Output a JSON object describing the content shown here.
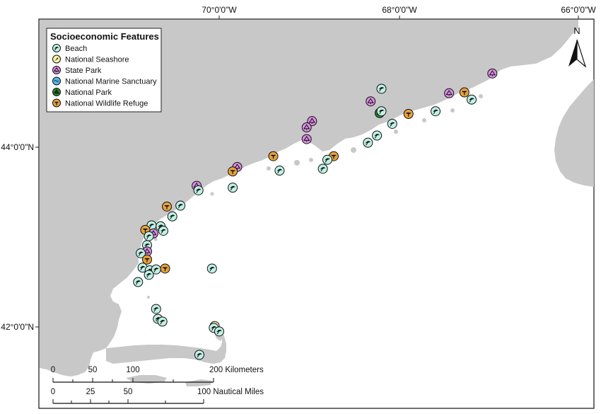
{
  "grid_labels": {
    "lon": [
      "70°0'0\"W",
      "68°0'0\"W",
      "66°0'0\"W"
    ],
    "lat": [
      "44°0'0\"N",
      "42°0'0\"N"
    ]
  },
  "legend": {
    "title": "Socioeconomic Features",
    "items": [
      {
        "label": "Beach",
        "type": "beach"
      },
      {
        "label": "National Seashore",
        "type": "seashore"
      },
      {
        "label": "State Park",
        "type": "statepark"
      },
      {
        "label": "National Marine Sanctuary",
        "type": "sanctuary"
      },
      {
        "label": "National Park",
        "type": "natpark"
      },
      {
        "label": "National Wildlife Refuge",
        "type": "refuge"
      }
    ]
  },
  "north_arrow": {
    "label": "N"
  },
  "scale_bars": [
    {
      "ticks": [
        "0",
        "50",
        "100",
        "200 Kilometers"
      ]
    },
    {
      "ticks": [
        "0",
        "25",
        "50",
        "100 Nautical Miles"
      ]
    }
  ],
  "colors": {
    "land": "#c8c8c8",
    "water": "#ffffff",
    "beach": "#bff0e4",
    "seashore": "#f7f3a6",
    "statepark": "#d98ee2",
    "sanctuary": "#57b8e6",
    "natpark": "#2f8a2f",
    "refuge": "#e6a13a"
  },
  "features": [
    {
      "type": "beach",
      "lon": -68.2,
      "lat": 44.65
    },
    {
      "type": "statepark",
      "lon": -68.32,
      "lat": 44.51
    },
    {
      "type": "natpark",
      "lon": -68.22,
      "lat": 44.38
    },
    {
      "type": "beach",
      "lon": -68.2,
      "lat": 44.4
    },
    {
      "type": "refuge",
      "lon": -67.9,
      "lat": 44.37
    },
    {
      "type": "beach",
      "lon": -67.6,
      "lat": 44.4
    },
    {
      "type": "statepark",
      "lon": -67.45,
      "lat": 44.6
    },
    {
      "type": "refuge",
      "lon": -67.28,
      "lat": 44.61
    },
    {
      "type": "beach",
      "lon": -67.2,
      "lat": 44.53
    },
    {
      "type": "statepark",
      "lon": -66.97,
      "lat": 44.82
    },
    {
      "type": "beach",
      "lon": -68.08,
      "lat": 44.26
    },
    {
      "type": "beach",
      "lon": -68.25,
      "lat": 44.13
    },
    {
      "type": "beach",
      "lon": -68.35,
      "lat": 44.05
    },
    {
      "type": "statepark",
      "lon": -68.97,
      "lat": 44.29
    },
    {
      "type": "statepark",
      "lon": -69.03,
      "lat": 44.22
    },
    {
      "type": "statepark",
      "lon": -69.03,
      "lat": 44.09
    },
    {
      "type": "refuge",
      "lon": -68.73,
      "lat": 43.9
    },
    {
      "type": "beach",
      "lon": -68.8,
      "lat": 43.86
    },
    {
      "type": "beach",
      "lon": -68.85,
      "lat": 43.76
    },
    {
      "type": "refuge",
      "lon": -69.4,
      "lat": 43.9
    },
    {
      "type": "beach",
      "lon": -69.33,
      "lat": 43.74
    },
    {
      "type": "statepark",
      "lon": -69.8,
      "lat": 43.78
    },
    {
      "type": "refuge",
      "lon": -69.85,
      "lat": 43.73
    },
    {
      "type": "beach",
      "lon": -69.85,
      "lat": 43.55
    },
    {
      "type": "statepark",
      "lon": -70.25,
      "lat": 43.57
    },
    {
      "type": "beach",
      "lon": -70.23,
      "lat": 43.52
    },
    {
      "type": "beach",
      "lon": -70.43,
      "lat": 43.35
    },
    {
      "type": "refuge",
      "lon": -70.58,
      "lat": 43.34
    },
    {
      "type": "beach",
      "lon": -70.52,
      "lat": 43.23
    },
    {
      "type": "beach",
      "lon": -70.65,
      "lat": 43.12
    },
    {
      "type": "beach",
      "lon": -70.75,
      "lat": 43.13
    },
    {
      "type": "beach",
      "lon": -70.62,
      "lat": 43.07
    },
    {
      "type": "refuge",
      "lon": -70.82,
      "lat": 43.08
    },
    {
      "type": "statepark",
      "lon": -70.73,
      "lat": 43.04
    },
    {
      "type": "beach",
      "lon": -70.78,
      "lat": 43.01
    },
    {
      "type": "beach",
      "lon": -70.8,
      "lat": 42.91
    },
    {
      "type": "statepark",
      "lon": -70.8,
      "lat": 42.84
    },
    {
      "type": "beach",
      "lon": -70.87,
      "lat": 42.82
    },
    {
      "type": "refuge",
      "lon": -70.8,
      "lat": 42.75
    },
    {
      "type": "beach",
      "lon": -70.85,
      "lat": 42.66
    },
    {
      "type": "beach",
      "lon": -70.77,
      "lat": 42.63
    },
    {
      "type": "beach",
      "lon": -70.7,
      "lat": 42.64
    },
    {
      "type": "beach",
      "lon": -70.78,
      "lat": 42.58
    },
    {
      "type": "refuge",
      "lon": -70.6,
      "lat": 42.65
    },
    {
      "type": "beach",
      "lon": -70.9,
      "lat": 42.5
    },
    {
      "type": "beach",
      "lon": -70.08,
      "lat": 42.65
    },
    {
      "type": "beach",
      "lon": -70.7,
      "lat": 42.2
    },
    {
      "type": "beach",
      "lon": -70.68,
      "lat": 42.09
    },
    {
      "type": "beach",
      "lon": -70.63,
      "lat": 42.06
    },
    {
      "type": "seashore",
      "lon": -70.05,
      "lat": 42.01
    },
    {
      "type": "beach",
      "lon": -70.06,
      "lat": 41.99
    },
    {
      "type": "beach",
      "lon": -70.0,
      "lat": 41.95
    },
    {
      "type": "beach",
      "lon": -70.22,
      "lat": 41.69
    }
  ]
}
